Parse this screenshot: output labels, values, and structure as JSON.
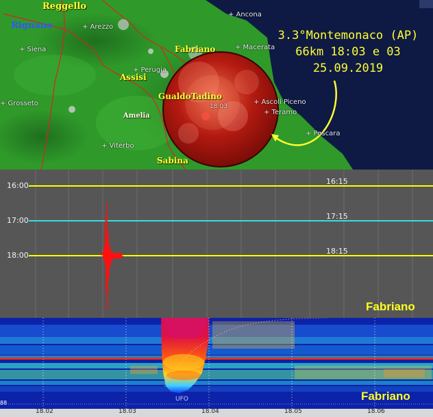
{
  "map": {
    "quake_info": {
      "line1": "3.3°Montemonaco (AP)",
      "line2": "66km 18:03 e 03",
      "line3": "25.09.2019"
    },
    "epicenter_time": "18:03",
    "regions": {
      "reggello": "Reggello",
      "rignano": "Rignano",
      "fabriano": "Fabriano",
      "assisi": "Assisi",
      "gualdo": "GualdoTadino",
      "amelia": "Amelia",
      "sabina": "Sabina"
    },
    "cities": {
      "arezzo": "+ Arezzo",
      "ancona": "+ Ancona",
      "siena": "+ Siena",
      "macerata": "+ Macerata",
      "perugia": "+ Perugia",
      "grosseto": "+ Grosseto",
      "ascoli": "+ Ascoli Piceno",
      "teramo": "+ Teramo",
      "viterbo": "+ Viterbo",
      "pescara": "+ Pescara"
    },
    "colors": {
      "region_label": "#ffff33",
      "quake_text": "#ffff33",
      "sea": "#0f1a44",
      "land": "#2f9a2a"
    }
  },
  "seismogram": {
    "time_labels": [
      "16:00",
      "17:00",
      "18:00"
    ],
    "right_labels": [
      "16:15",
      "17:15",
      "18:15"
    ],
    "station": "Fabriano",
    "colors": {
      "line_yellow": "#ffff00",
      "line_cyan": "#33e0e0",
      "trace": "#ff1010"
    }
  },
  "spectrogram": {
    "station": "Fabriano",
    "ufo_label": "UFO",
    "left_marker": "88",
    "x_ticks": [
      "18.02",
      "18.03",
      "18.04",
      "18.05",
      "18.06"
    ]
  }
}
